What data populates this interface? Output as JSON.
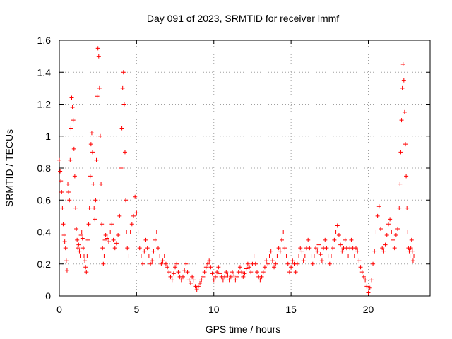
{
  "chart_data": {
    "type": "scatter",
    "title": "Day 091 of 2023, SRMTID for receiver lmmf",
    "xlabel": "GPS time / hours",
    "ylabel": "SRMTID / TECUs",
    "xlim": [
      0,
      24
    ],
    "ylim": [
      0,
      1.6
    ],
    "x_ticks": [
      0,
      5,
      10,
      15,
      20
    ],
    "x_tick_labels": [
      "0",
      "5",
      "10",
      "15",
      "20"
    ],
    "y_ticks": [
      0,
      0.2,
      0.4,
      0.6,
      0.8,
      1.0,
      1.2,
      1.4,
      1.6
    ],
    "y_tick_labels": [
      "0",
      "0.2",
      "0.4",
      "0.6",
      "0.8",
      "1",
      "1.2",
      "1.4",
      "1.6"
    ],
    "grid": true,
    "marker": "+",
    "series": [
      {
        "name": "SRMTID",
        "color": "#ff0000",
        "points": [
          [
            0.0,
            0.85
          ],
          [
            0.05,
            0.78
          ],
          [
            0.1,
            0.72
          ],
          [
            0.15,
            0.65
          ],
          [
            0.2,
            0.55
          ],
          [
            0.25,
            0.45
          ],
          [
            0.3,
            0.38
          ],
          [
            0.35,
            0.34
          ],
          [
            0.4,
            0.3
          ],
          [
            0.45,
            0.22
          ],
          [
            0.5,
            0.16
          ],
          [
            0.55,
            0.7
          ],
          [
            0.6,
            0.65
          ],
          [
            0.65,
            0.6
          ],
          [
            0.7,
            0.85
          ],
          [
            0.75,
            1.05
          ],
          [
            0.8,
            1.24
          ],
          [
            0.85,
            1.18
          ],
          [
            0.9,
            1.1
          ],
          [
            0.95,
            0.92
          ],
          [
            1.0,
            0.75
          ],
          [
            1.05,
            0.55
          ],
          [
            1.1,
            0.42
          ],
          [
            1.15,
            0.35
          ],
          [
            1.2,
            0.3
          ],
          [
            1.25,
            0.32
          ],
          [
            1.3,
            0.28
          ],
          [
            1.35,
            0.25
          ],
          [
            1.4,
            0.38
          ],
          [
            1.45,
            0.4
          ],
          [
            1.5,
            0.36
          ],
          [
            1.55,
            0.3
          ],
          [
            1.6,
            0.25
          ],
          [
            1.65,
            0.22
          ],
          [
            1.7,
            0.18
          ],
          [
            1.75,
            0.15
          ],
          [
            1.8,
            0.25
          ],
          [
            1.85,
            0.35
          ],
          [
            1.9,
            0.45
          ],
          [
            1.95,
            0.55
          ],
          [
            2.0,
            0.75
          ],
          [
            2.05,
            0.95
          ],
          [
            2.1,
            1.02
          ],
          [
            2.15,
            0.9
          ],
          [
            2.2,
            0.7
          ],
          [
            2.25,
            0.55
          ],
          [
            2.3,
            0.48
          ],
          [
            2.35,
            0.6
          ],
          [
            2.4,
            0.85
          ],
          [
            2.45,
            1.25
          ],
          [
            2.5,
            1.55
          ],
          [
            2.55,
            1.5
          ],
          [
            2.6,
            1.3
          ],
          [
            2.65,
            1.0
          ],
          [
            2.7,
            0.7
          ],
          [
            2.75,
            0.45
          ],
          [
            2.8,
            0.3
          ],
          [
            2.85,
            0.2
          ],
          [
            2.9,
            0.25
          ],
          [
            2.95,
            0.35
          ],
          [
            3.0,
            0.38
          ],
          [
            3.1,
            0.36
          ],
          [
            3.2,
            0.34
          ],
          [
            3.3,
            0.4
          ],
          [
            3.4,
            0.45
          ],
          [
            3.5,
            0.35
          ],
          [
            3.6,
            0.3
          ],
          [
            3.7,
            0.33
          ],
          [
            3.8,
            0.38
          ],
          [
            3.9,
            0.5
          ],
          [
            4.0,
            0.8
          ],
          [
            4.05,
            1.05
          ],
          [
            4.1,
            1.3
          ],
          [
            4.15,
            1.4
          ],
          [
            4.2,
            1.2
          ],
          [
            4.25,
            0.9
          ],
          [
            4.3,
            0.6
          ],
          [
            4.35,
            0.4
          ],
          [
            4.4,
            0.3
          ],
          [
            4.5,
            0.25
          ],
          [
            4.6,
            0.4
          ],
          [
            4.7,
            0.45
          ],
          [
            4.8,
            0.5
          ],
          [
            4.9,
            0.62
          ],
          [
            5.0,
            0.52
          ],
          [
            5.1,
            0.4
          ],
          [
            5.2,
            0.3
          ],
          [
            5.3,
            0.25
          ],
          [
            5.4,
            0.2
          ],
          [
            5.5,
            0.28
          ],
          [
            5.6,
            0.35
          ],
          [
            5.7,
            0.3
          ],
          [
            5.8,
            0.25
          ],
          [
            5.9,
            0.2
          ],
          [
            6.0,
            0.22
          ],
          [
            6.1,
            0.28
          ],
          [
            6.2,
            0.35
          ],
          [
            6.3,
            0.4
          ],
          [
            6.4,
            0.3
          ],
          [
            6.5,
            0.25
          ],
          [
            6.6,
            0.2
          ],
          [
            6.7,
            0.22
          ],
          [
            6.8,
            0.25
          ],
          [
            6.9,
            0.2
          ],
          [
            7.0,
            0.18
          ],
          [
            7.1,
            0.15
          ],
          [
            7.2,
            0.12
          ],
          [
            7.3,
            0.1
          ],
          [
            7.4,
            0.14
          ],
          [
            7.5,
            0.18
          ],
          [
            7.6,
            0.2
          ],
          [
            7.7,
            0.15
          ],
          [
            7.8,
            0.12
          ],
          [
            7.9,
            0.1
          ],
          [
            8.0,
            0.12
          ],
          [
            8.1,
            0.16
          ],
          [
            8.2,
            0.2
          ],
          [
            8.3,
            0.15
          ],
          [
            8.4,
            0.1
          ],
          [
            8.5,
            0.08
          ],
          [
            8.6,
            0.12
          ],
          [
            8.7,
            0.1
          ],
          [
            8.8,
            0.06
          ],
          [
            8.9,
            0.04
          ],
          [
            9.0,
            0.06
          ],
          [
            9.1,
            0.08
          ],
          [
            9.2,
            0.1
          ],
          [
            9.3,
            0.12
          ],
          [
            9.4,
            0.15
          ],
          [
            9.5,
            0.18
          ],
          [
            9.6,
            0.2
          ],
          [
            9.7,
            0.22
          ],
          [
            9.8,
            0.18
          ],
          [
            9.9,
            0.14
          ],
          [
            10.0,
            0.1
          ],
          [
            10.1,
            0.12
          ],
          [
            10.2,
            0.15
          ],
          [
            10.3,
            0.18
          ],
          [
            10.4,
            0.14
          ],
          [
            10.5,
            0.12
          ],
          [
            10.6,
            0.1
          ],
          [
            10.7,
            0.12
          ],
          [
            10.8,
            0.15
          ],
          [
            10.9,
            0.13
          ],
          [
            11.0,
            0.1
          ],
          [
            11.1,
            0.12
          ],
          [
            11.2,
            0.15
          ],
          [
            11.3,
            0.13
          ],
          [
            11.4,
            0.1
          ],
          [
            11.5,
            0.12
          ],
          [
            11.6,
            0.15
          ],
          [
            11.7,
            0.18
          ],
          [
            11.8,
            0.15
          ],
          [
            11.9,
            0.12
          ],
          [
            12.0,
            0.14
          ],
          [
            12.1,
            0.17
          ],
          [
            12.2,
            0.2
          ],
          [
            12.3,
            0.18
          ],
          [
            12.4,
            0.15
          ],
          [
            12.5,
            0.2
          ],
          [
            12.6,
            0.25
          ],
          [
            12.7,
            0.2
          ],
          [
            12.8,
            0.15
          ],
          [
            12.9,
            0.12
          ],
          [
            13.0,
            0.1
          ],
          [
            13.1,
            0.12
          ],
          [
            13.2,
            0.15
          ],
          [
            13.3,
            0.18
          ],
          [
            13.4,
            0.22
          ],
          [
            13.5,
            0.2
          ],
          [
            13.6,
            0.25
          ],
          [
            13.7,
            0.28
          ],
          [
            13.8,
            0.22
          ],
          [
            13.9,
            0.18
          ],
          [
            14.0,
            0.2
          ],
          [
            14.1,
            0.25
          ],
          [
            14.2,
            0.3
          ],
          [
            14.3,
            0.28
          ],
          [
            14.4,
            0.35
          ],
          [
            14.5,
            0.4
          ],
          [
            14.6,
            0.3
          ],
          [
            14.7,
            0.25
          ],
          [
            14.8,
            0.2
          ],
          [
            14.9,
            0.15
          ],
          [
            15.0,
            0.18
          ],
          [
            15.1,
            0.22
          ],
          [
            15.2,
            0.2
          ],
          [
            15.3,
            0.15
          ],
          [
            15.4,
            0.2
          ],
          [
            15.5,
            0.25
          ],
          [
            15.6,
            0.3
          ],
          [
            15.7,
            0.28
          ],
          [
            15.8,
            0.22
          ],
          [
            15.9,
            0.25
          ],
          [
            16.0,
            0.3
          ],
          [
            16.1,
            0.35
          ],
          [
            16.2,
            0.3
          ],
          [
            16.3,
            0.25
          ],
          [
            16.4,
            0.2
          ],
          [
            16.5,
            0.25
          ],
          [
            16.6,
            0.3
          ],
          [
            16.7,
            0.28
          ],
          [
            16.8,
            0.32
          ],
          [
            16.9,
            0.26
          ],
          [
            17.0,
            0.22
          ],
          [
            17.1,
            0.3
          ],
          [
            17.2,
            0.35
          ],
          [
            17.3,
            0.3
          ],
          [
            17.4,
            0.25
          ],
          [
            17.5,
            0.2
          ],
          [
            17.6,
            0.25
          ],
          [
            17.7,
            0.3
          ],
          [
            17.8,
            0.35
          ],
          [
            17.9,
            0.4
          ],
          [
            18.0,
            0.44
          ],
          [
            18.1,
            0.38
          ],
          [
            18.2,
            0.32
          ],
          [
            18.3,
            0.28
          ],
          [
            18.4,
            0.3
          ],
          [
            18.5,
            0.35
          ],
          [
            18.6,
            0.3
          ],
          [
            18.7,
            0.25
          ],
          [
            18.8,
            0.3
          ],
          [
            18.9,
            0.35
          ],
          [
            19.0,
            0.3
          ],
          [
            19.1,
            0.25
          ],
          [
            19.2,
            0.3
          ],
          [
            19.3,
            0.28
          ],
          [
            19.4,
            0.22
          ],
          [
            19.5,
            0.18
          ],
          [
            19.6,
            0.15
          ],
          [
            19.7,
            0.12
          ],
          [
            19.8,
            0.1
          ],
          [
            19.9,
            0.06
          ],
          [
            20.0,
            0.02
          ],
          [
            20.1,
            0.05
          ],
          [
            20.2,
            0.1
          ],
          [
            20.3,
            0.2
          ],
          [
            20.4,
            0.28
          ],
          [
            20.5,
            0.4
          ],
          [
            20.6,
            0.5
          ],
          [
            20.7,
            0.56
          ],
          [
            20.8,
            0.42
          ],
          [
            20.9,
            0.3
          ],
          [
            21.0,
            0.28
          ],
          [
            21.1,
            0.32
          ],
          [
            21.2,
            0.38
          ],
          [
            21.3,
            0.45
          ],
          [
            21.4,
            0.48
          ],
          [
            21.5,
            0.4
          ],
          [
            21.6,
            0.35
          ],
          [
            21.7,
            0.3
          ],
          [
            21.8,
            0.38
          ],
          [
            21.9,
            0.42
          ],
          [
            22.0,
            0.55
          ],
          [
            22.05,
            0.7
          ],
          [
            22.1,
            0.9
          ],
          [
            22.15,
            1.1
          ],
          [
            22.2,
            1.3
          ],
          [
            22.25,
            1.45
          ],
          [
            22.3,
            1.35
          ],
          [
            22.35,
            1.15
          ],
          [
            22.4,
            0.95
          ],
          [
            22.45,
            0.75
          ],
          [
            22.5,
            0.55
          ],
          [
            22.55,
            0.4
          ],
          [
            22.6,
            0.3
          ],
          [
            22.65,
            0.28
          ],
          [
            22.7,
            0.25
          ],
          [
            22.75,
            0.3
          ],
          [
            22.8,
            0.35
          ],
          [
            22.85,
            0.28
          ],
          [
            22.9,
            0.22
          ],
          [
            22.95,
            0.25
          ]
        ]
      }
    ]
  }
}
